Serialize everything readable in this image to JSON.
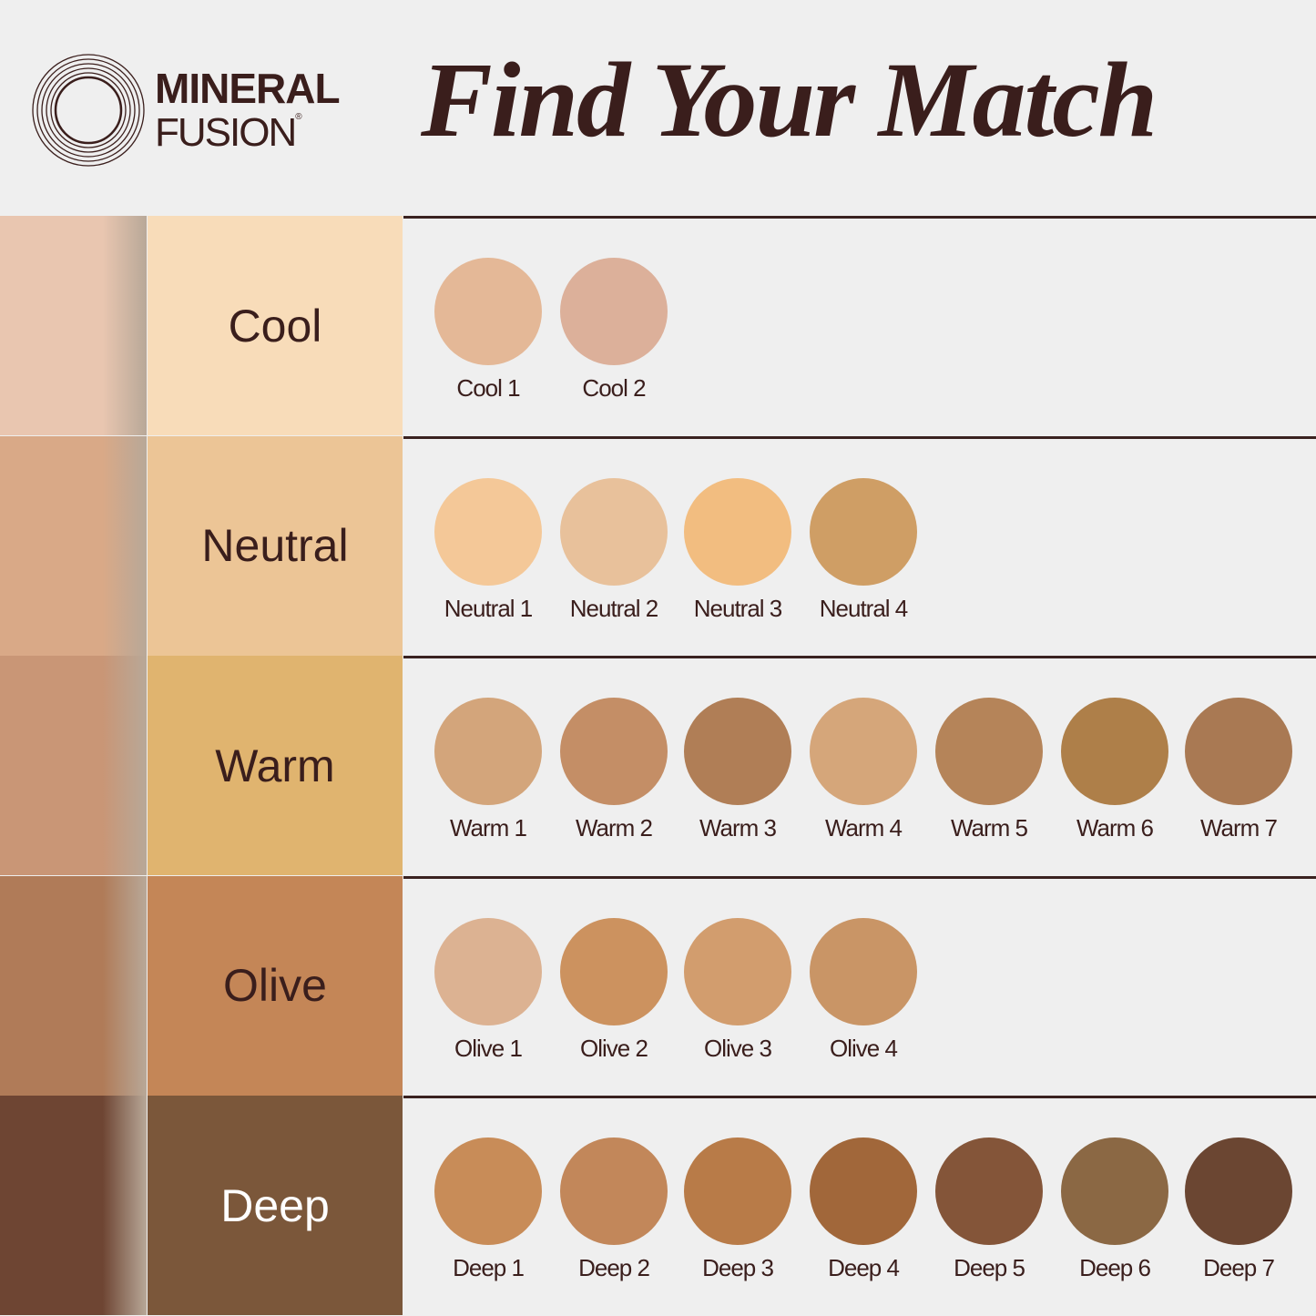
{
  "brand": {
    "line1": "MINERAL",
    "line2": "FUSION",
    "registered": "®"
  },
  "title": "Find Your Match",
  "rows": [
    {
      "label": "Cool",
      "label_bg": "#f8dcb9",
      "label_color": "#3a1e1c",
      "photo_tone": "#e9c6b0",
      "swatches": [
        {
          "name": "Cool 1",
          "color": "#e4b897"
        },
        {
          "name": "Cool 2",
          "color": "#dcb09a"
        }
      ]
    },
    {
      "label": "Neutral",
      "label_bg": "#ecc596",
      "label_color": "#3a1e1c",
      "photo_tone": "#d9a987",
      "swatches": [
        {
          "name": "Neutral 1",
          "color": "#f4c898"
        },
        {
          "name": "Neutral 2",
          "color": "#e8c19b"
        },
        {
          "name": "Neutral 3",
          "color": "#f2bd80"
        },
        {
          "name": "Neutral 4",
          "color": "#cf9e65"
        }
      ]
    },
    {
      "label": "Warm",
      "label_bg": "#e0b46f",
      "label_color": "#3a1e1c",
      "photo_tone": "#c99676",
      "swatches": [
        {
          "name": "Warm 1",
          "color": "#d3a57b"
        },
        {
          "name": "Warm 2",
          "color": "#c48e66"
        },
        {
          "name": "Warm 3",
          "color": "#b07e56"
        },
        {
          "name": "Warm 4",
          "color": "#d5a67a"
        },
        {
          "name": "Warm 5",
          "color": "#b58459"
        },
        {
          "name": "Warm 6",
          "color": "#ae7f49"
        },
        {
          "name": "Warm 7",
          "color": "#a97953"
        }
      ]
    },
    {
      "label": "Olive",
      "label_bg": "#c48657",
      "label_color": "#3a1e1c",
      "photo_tone": "#b07b58",
      "swatches": [
        {
          "name": "Olive 1",
          "color": "#dcb292"
        },
        {
          "name": "Olive 2",
          "color": "#cc925f"
        },
        {
          "name": "Olive 3",
          "color": "#d29d6e"
        },
        {
          "name": "Olive 4",
          "color": "#c99566"
        }
      ]
    },
    {
      "label": "Deep",
      "label_bg": "#7b573a",
      "label_color": "#ffffff",
      "photo_tone": "#6e4533",
      "swatches": [
        {
          "name": "Deep 1",
          "color": "#c88c58"
        },
        {
          "name": "Deep 2",
          "color": "#c2875a"
        },
        {
          "name": "Deep 3",
          "color": "#b87b48"
        },
        {
          "name": "Deep 4",
          "color": "#a1673a"
        },
        {
          "name": "Deep 5",
          "color": "#845539"
        },
        {
          "name": "Deep 6",
          "color": "#8b6844"
        },
        {
          "name": "Deep 7",
          "color": "#6b4632"
        }
      ]
    }
  ]
}
